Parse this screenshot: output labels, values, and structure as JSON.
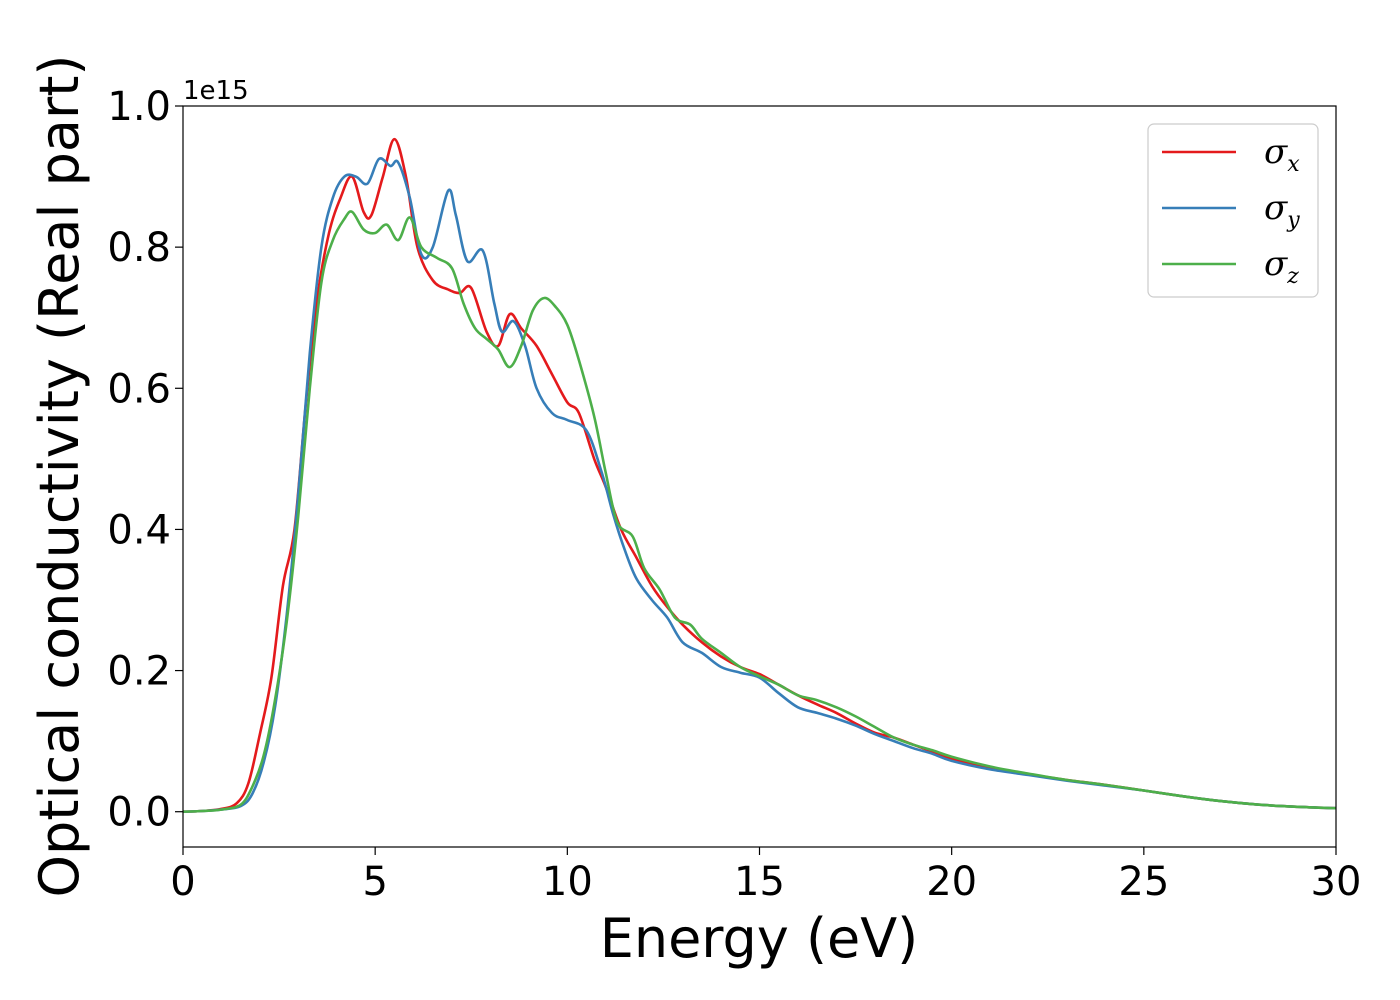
{
  "chart_data": {
    "type": "line",
    "title": "",
    "xlabel": "Energy (eV)",
    "ylabel": "Optical conductivity (Real part)",
    "y_offset_text": "1e15",
    "xlim": [
      0,
      30
    ],
    "ylim": [
      -0.05,
      1.0
    ],
    "x_ticks": [
      0,
      5,
      10,
      15,
      20,
      25,
      30
    ],
    "x_tick_labels": [
      "0",
      "5",
      "10",
      "15",
      "20",
      "25",
      "30"
    ],
    "y_ticks": [
      0.0,
      0.2,
      0.4,
      0.6,
      0.8,
      1.0
    ],
    "y_tick_labels": [
      "0.0",
      "0.2",
      "0.4",
      "0.6",
      "0.8",
      "1.0"
    ],
    "grid": false,
    "legend_position": "top-right",
    "series": [
      {
        "name": "σx",
        "legend_symbol": "σ",
        "legend_sub": "x",
        "color": "#e41a1c",
        "points": [
          [
            0,
            0
          ],
          [
            0.5,
            0.001
          ],
          [
            1.0,
            0.004
          ],
          [
            1.4,
            0.012
          ],
          [
            1.7,
            0.04
          ],
          [
            2.0,
            0.11
          ],
          [
            2.3,
            0.19
          ],
          [
            2.6,
            0.32
          ],
          [
            2.9,
            0.4
          ],
          [
            3.2,
            0.58
          ],
          [
            3.5,
            0.73
          ],
          [
            3.8,
            0.82
          ],
          [
            4.1,
            0.87
          ],
          [
            4.4,
            0.9
          ],
          [
            4.7,
            0.85
          ],
          [
            4.9,
            0.845
          ],
          [
            5.2,
            0.9
          ],
          [
            5.5,
            0.953
          ],
          [
            5.8,
            0.9
          ],
          [
            6.1,
            0.8
          ],
          [
            6.5,
            0.753
          ],
          [
            6.9,
            0.74
          ],
          [
            7.2,
            0.735
          ],
          [
            7.5,
            0.742
          ],
          [
            7.9,
            0.68
          ],
          [
            8.2,
            0.66
          ],
          [
            8.5,
            0.705
          ],
          [
            8.8,
            0.685
          ],
          [
            9.2,
            0.66
          ],
          [
            9.6,
            0.62
          ],
          [
            10.0,
            0.58
          ],
          [
            10.3,
            0.565
          ],
          [
            10.7,
            0.5
          ],
          [
            11.0,
            0.46
          ],
          [
            11.4,
            0.4
          ],
          [
            11.8,
            0.36
          ],
          [
            12.2,
            0.32
          ],
          [
            12.6,
            0.29
          ],
          [
            13.0,
            0.265
          ],
          [
            13.5,
            0.24
          ],
          [
            14.0,
            0.22
          ],
          [
            14.5,
            0.205
          ],
          [
            15.0,
            0.195
          ],
          [
            15.5,
            0.18
          ],
          [
            16.0,
            0.165
          ],
          [
            16.5,
            0.152
          ],
          [
            17.0,
            0.14
          ],
          [
            17.5,
            0.125
          ],
          [
            18.0,
            0.112
          ],
          [
            18.5,
            0.105
          ],
          [
            19.0,
            0.095
          ],
          [
            19.5,
            0.085
          ],
          [
            20.0,
            0.075
          ],
          [
            21.0,
            0.062
          ],
          [
            22.0,
            0.053
          ],
          [
            23.0,
            0.045
          ],
          [
            24.0,
            0.038
          ],
          [
            25.0,
            0.03
          ],
          [
            26.0,
            0.022
          ],
          [
            27.0,
            0.015
          ],
          [
            28.0,
            0.01
          ],
          [
            29.0,
            0.007
          ],
          [
            30.0,
            0.005
          ]
        ]
      },
      {
        "name": "σy",
        "legend_symbol": "σ",
        "legend_sub": "y",
        "color": "#377eb8",
        "points": [
          [
            0,
            0
          ],
          [
            0.5,
            0.001
          ],
          [
            1.0,
            0.003
          ],
          [
            1.5,
            0.008
          ],
          [
            1.8,
            0.025
          ],
          [
            2.1,
            0.07
          ],
          [
            2.4,
            0.15
          ],
          [
            2.7,
            0.28
          ],
          [
            3.0,
            0.45
          ],
          [
            3.3,
            0.65
          ],
          [
            3.6,
            0.8
          ],
          [
            3.9,
            0.87
          ],
          [
            4.2,
            0.9
          ],
          [
            4.5,
            0.9
          ],
          [
            4.8,
            0.89
          ],
          [
            5.1,
            0.925
          ],
          [
            5.4,
            0.915
          ],
          [
            5.6,
            0.92
          ],
          [
            5.9,
            0.87
          ],
          [
            6.2,
            0.79
          ],
          [
            6.5,
            0.8
          ],
          [
            6.9,
            0.88
          ],
          [
            7.1,
            0.845
          ],
          [
            7.4,
            0.78
          ],
          [
            7.8,
            0.795
          ],
          [
            8.1,
            0.72
          ],
          [
            8.3,
            0.68
          ],
          [
            8.6,
            0.695
          ],
          [
            8.9,
            0.66
          ],
          [
            9.2,
            0.6
          ],
          [
            9.6,
            0.565
          ],
          [
            10.0,
            0.555
          ],
          [
            10.5,
            0.54
          ],
          [
            10.9,
            0.48
          ],
          [
            11.2,
            0.42
          ],
          [
            11.5,
            0.37
          ],
          [
            11.8,
            0.33
          ],
          [
            12.2,
            0.3
          ],
          [
            12.6,
            0.275
          ],
          [
            13.0,
            0.24
          ],
          [
            13.5,
            0.225
          ],
          [
            14.0,
            0.205
          ],
          [
            14.5,
            0.197
          ],
          [
            15.0,
            0.19
          ],
          [
            15.5,
            0.168
          ],
          [
            16.0,
            0.148
          ],
          [
            16.5,
            0.14
          ],
          [
            17.0,
            0.132
          ],
          [
            17.5,
            0.122
          ],
          [
            18.0,
            0.11
          ],
          [
            18.5,
            0.1
          ],
          [
            19.0,
            0.09
          ],
          [
            19.5,
            0.082
          ],
          [
            20.0,
            0.072
          ],
          [
            21.0,
            0.06
          ],
          [
            22.0,
            0.052
          ],
          [
            23.0,
            0.044
          ],
          [
            24.0,
            0.037
          ],
          [
            25.0,
            0.03
          ],
          [
            26.0,
            0.022
          ],
          [
            27.0,
            0.015
          ],
          [
            28.0,
            0.01
          ],
          [
            29.0,
            0.007
          ],
          [
            30.0,
            0.005
          ]
        ]
      },
      {
        "name": "σz",
        "legend_symbol": "σ",
        "legend_sub": "z",
        "color": "#4daf4a",
        "points": [
          [
            0,
            0
          ],
          [
            0.5,
            0.001
          ],
          [
            1.0,
            0.003
          ],
          [
            1.5,
            0.01
          ],
          [
            1.8,
            0.035
          ],
          [
            2.1,
            0.08
          ],
          [
            2.4,
            0.16
          ],
          [
            2.7,
            0.27
          ],
          [
            3.0,
            0.42
          ],
          [
            3.3,
            0.6
          ],
          [
            3.6,
            0.75
          ],
          [
            3.9,
            0.81
          ],
          [
            4.2,
            0.84
          ],
          [
            4.4,
            0.85
          ],
          [
            4.7,
            0.825
          ],
          [
            5.0,
            0.82
          ],
          [
            5.3,
            0.832
          ],
          [
            5.6,
            0.81
          ],
          [
            5.9,
            0.842
          ],
          [
            6.2,
            0.8
          ],
          [
            6.6,
            0.785
          ],
          [
            7.0,
            0.77
          ],
          [
            7.3,
            0.72
          ],
          [
            7.6,
            0.685
          ],
          [
            7.9,
            0.67
          ],
          [
            8.2,
            0.655
          ],
          [
            8.5,
            0.63
          ],
          [
            8.8,
            0.66
          ],
          [
            9.1,
            0.71
          ],
          [
            9.4,
            0.728
          ],
          [
            9.7,
            0.715
          ],
          [
            10.0,
            0.69
          ],
          [
            10.3,
            0.64
          ],
          [
            10.7,
            0.56
          ],
          [
            11.0,
            0.48
          ],
          [
            11.3,
            0.41
          ],
          [
            11.7,
            0.39
          ],
          [
            12.0,
            0.345
          ],
          [
            12.4,
            0.315
          ],
          [
            12.8,
            0.275
          ],
          [
            13.2,
            0.265
          ],
          [
            13.5,
            0.245
          ],
          [
            14.0,
            0.225
          ],
          [
            14.5,
            0.205
          ],
          [
            15.0,
            0.192
          ],
          [
            15.5,
            0.18
          ],
          [
            16.0,
            0.165
          ],
          [
            16.5,
            0.158
          ],
          [
            17.0,
            0.148
          ],
          [
            17.5,
            0.135
          ],
          [
            18.0,
            0.12
          ],
          [
            18.5,
            0.105
          ],
          [
            19.0,
            0.095
          ],
          [
            19.5,
            0.087
          ],
          [
            20.0,
            0.078
          ],
          [
            21.0,
            0.064
          ],
          [
            22.0,
            0.054
          ],
          [
            23.0,
            0.045
          ],
          [
            24.0,
            0.038
          ],
          [
            25.0,
            0.03
          ],
          [
            26.0,
            0.022
          ],
          [
            27.0,
            0.015
          ],
          [
            28.0,
            0.01
          ],
          [
            29.0,
            0.007
          ],
          [
            30.0,
            0.005
          ]
        ]
      }
    ]
  }
}
